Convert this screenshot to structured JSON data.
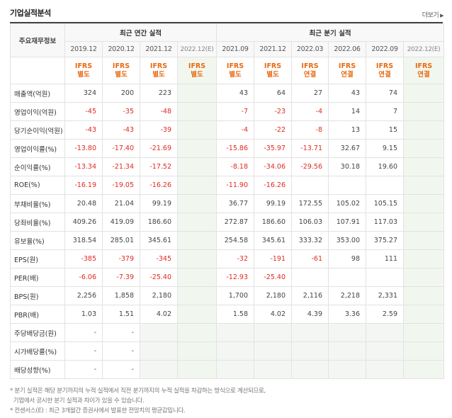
{
  "header": {
    "title": "기업실적분석",
    "more_label": "더보기",
    "more_arrow": "▶"
  },
  "columns": {
    "label_head": "주요재무정보",
    "group_annual": "최근 연간 실적",
    "group_quarter": "최근 분기 실적",
    "periods": [
      "2019.12",
      "2020.12",
      "2021.12",
      "2022.12(E)",
      "2021.09",
      "2021.12",
      "2022.03",
      "2022.06",
      "2022.09",
      "2022.12(E)"
    ],
    "ifrs": [
      {
        "top": "IFRS",
        "bottom": "별도"
      },
      {
        "top": "IFRS",
        "bottom": "별도"
      },
      {
        "top": "IFRS",
        "bottom": "별도"
      },
      {
        "top": "IFRS",
        "bottom": "별도"
      },
      {
        "top": "IFRS",
        "bottom": "별도"
      },
      {
        "top": "IFRS",
        "bottom": "별도"
      },
      {
        "top": "IFRS",
        "bottom": "연결"
      },
      {
        "top": "IFRS",
        "bottom": "연결"
      },
      {
        "top": "IFRS",
        "bottom": "연결"
      },
      {
        "top": "IFRS",
        "bottom": "연결"
      }
    ]
  },
  "rows": [
    {
      "label": "매출액(억원)",
      "values": [
        "324",
        "200",
        "223",
        "",
        "43",
        "64",
        "27",
        "43",
        "74",
        ""
      ]
    },
    {
      "label": "영업이익(억원)",
      "values": [
        "-45",
        "-35",
        "-48",
        "",
        "-7",
        "-23",
        "-4",
        "14",
        "7",
        ""
      ]
    },
    {
      "label": "당기순이익(억원)",
      "values": [
        "-43",
        "-43",
        "-39",
        "",
        "-4",
        "-22",
        "-8",
        "13",
        "15",
        ""
      ]
    },
    {
      "label": "영업이익률(%)",
      "values": [
        "-13.80",
        "-17.40",
        "-21.69",
        "",
        "-15.86",
        "-35.97",
        "-13.71",
        "32.67",
        "9.15",
        ""
      ]
    },
    {
      "label": "순이익률(%)",
      "values": [
        "-13.34",
        "-21.34",
        "-17.52",
        "",
        "-8.18",
        "-34.06",
        "-29.56",
        "30.18",
        "19.60",
        ""
      ]
    },
    {
      "label": "ROE(%)",
      "values": [
        "-16.19",
        "-19.05",
        "-16.26",
        "",
        "-11.90",
        "-16.26",
        "",
        "",
        "",
        ""
      ]
    },
    {
      "label": "부채비율(%)",
      "values": [
        "20.48",
        "21.04",
        "99.19",
        "",
        "36.77",
        "99.19",
        "172.55",
        "105.02",
        "105.15",
        ""
      ]
    },
    {
      "label": "당좌비율(%)",
      "values": [
        "409.26",
        "419.09",
        "186.60",
        "",
        "272.87",
        "186.60",
        "106.03",
        "107.91",
        "117.03",
        ""
      ]
    },
    {
      "label": "유보율(%)",
      "values": [
        "318.54",
        "285.01",
        "345.61",
        "",
        "254.58",
        "345.61",
        "333.32",
        "353.00",
        "375.27",
        ""
      ]
    },
    {
      "label": "EPS(원)",
      "values": [
        "-385",
        "-379",
        "-345",
        "",
        "-32",
        "-191",
        "-61",
        "98",
        "111",
        ""
      ]
    },
    {
      "label": "PER(배)",
      "values": [
        "-6.06",
        "-7.39",
        "-25.40",
        "",
        "-12.93",
        "-25.40",
        "",
        "",
        "",
        ""
      ]
    },
    {
      "label": "BPS(원)",
      "values": [
        "2,256",
        "1,858",
        "2,180",
        "",
        "1,700",
        "2,180",
        "2,116",
        "2,218",
        "2,331",
        ""
      ]
    },
    {
      "label": "PBR(배)",
      "values": [
        "1.03",
        "1.51",
        "4.02",
        "",
        "1.58",
        "4.02",
        "4.39",
        "3.36",
        "2.59",
        ""
      ]
    },
    {
      "label": "주당배당금(원)",
      "values": [
        "-",
        "-",
        "",
        "",
        "",
        "",
        "",
        "",
        "",
        ""
      ]
    },
    {
      "label": "시가배당률(%)",
      "values": [
        "-",
        "-",
        "",
        "",
        "",
        "",
        "",
        "",
        "",
        ""
      ]
    },
    {
      "label": "배당성향(%)",
      "values": [
        "-",
        "-",
        "",
        "",
        "",
        "",
        "",
        "",
        "",
        ""
      ]
    }
  ],
  "notes": [
    "* 분기 실적은 해당 분기까지의 누적 실적에서 직전 분기까지의 누적 실적을 차감하는 방식으로 계산되므로,",
    "  기업에서 공시한 분기 실적과 차이가 있을 수 있습니다.",
    "* 컨센서스(E) : 최근 3개월간 증권사에서 발표한 전망치의 평균값입니다."
  ],
  "colors": {
    "negative": "#e02a20",
    "ifrs": "#e96a12",
    "estimate_bg": "#f1f7ee"
  }
}
